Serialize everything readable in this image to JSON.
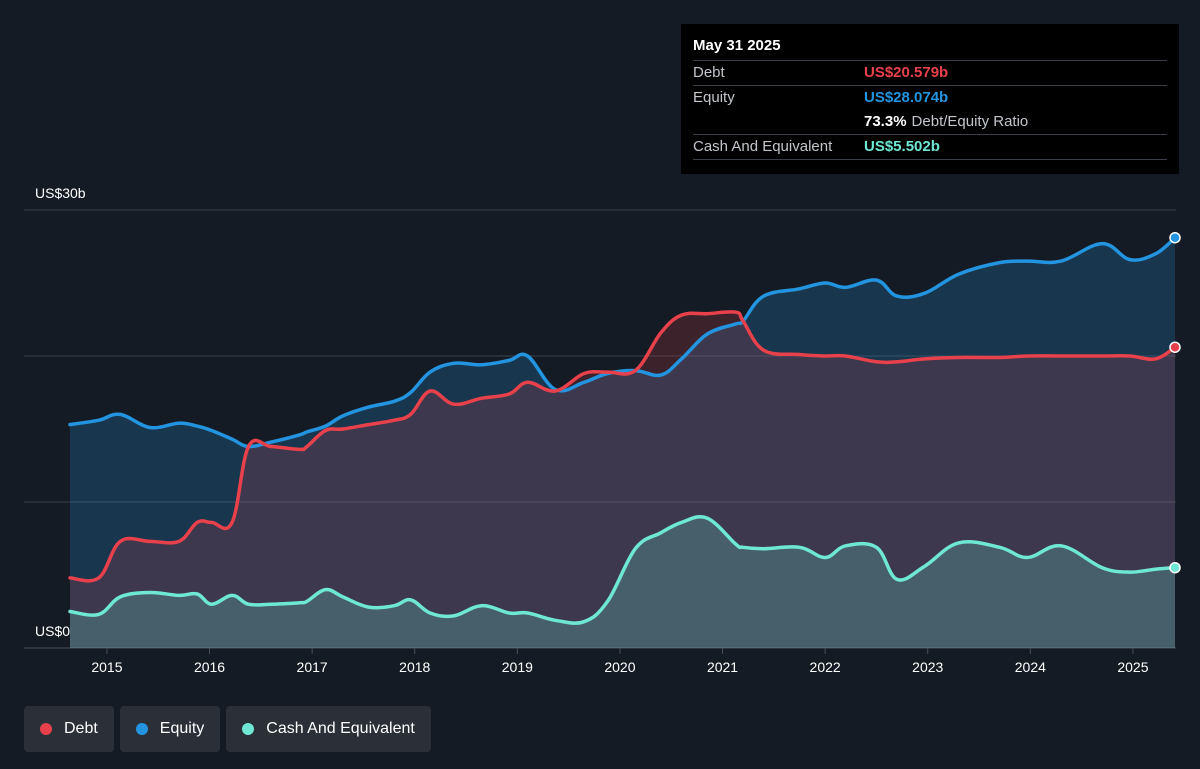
{
  "colors": {
    "debt": "#e8414b",
    "equity": "#2394df",
    "cash": "#6ee8d5",
    "grid": "#3a3f47"
  },
  "tooltip": {
    "date": "May 31 2025",
    "debt_label": "Debt",
    "debt_value": "US$20.579b",
    "equity_label": "Equity",
    "equity_value": "US$28.074b",
    "ratio_value": "73.3%",
    "ratio_label": "Debt/Equity Ratio",
    "cash_label": "Cash And Equivalent",
    "cash_value": "US$5.502b"
  },
  "legend": {
    "debt": "Debt",
    "equity": "Equity",
    "cash": "Cash And Equivalent"
  },
  "chart_data": {
    "type": "area",
    "ylabel_top": "US$30b",
    "ylabel_bottom": "US$0",
    "ylim": [
      0,
      30
    ],
    "grid": true,
    "x_ticks": [
      "2015",
      "2016",
      "2017",
      "2018",
      "2019",
      "2020",
      "2021",
      "2022",
      "2023",
      "2024",
      "2025"
    ],
    "series": [
      {
        "name": "Debt",
        "x": [
          2014.64,
          2014.92,
          2015.13,
          2015.42,
          2015.7,
          2015.88,
          2016.02,
          2016.22,
          2016.38,
          2016.6,
          2016.88,
          2016.95,
          2017.13,
          2017.3,
          2017.55,
          2017.8,
          2017.96,
          2018.15,
          2018.38,
          2018.65,
          2018.92,
          2019.1,
          2019.37,
          2019.65,
          2019.88,
          2020.15,
          2020.4,
          2020.6,
          2020.85,
          2021.13,
          2021.2,
          2021.4,
          2021.75,
          2022.0,
          2022.2,
          2022.5,
          2022.7,
          2022.97,
          2023.3,
          2023.7,
          2023.97,
          2024.3,
          2024.7,
          2024.97,
          2025.22,
          2025.41
        ],
        "values": [
          4.8,
          4.8,
          7.3,
          7.3,
          7.3,
          8.6,
          8.6,
          8.6,
          13.8,
          13.8,
          13.6,
          13.8,
          14.9,
          15.0,
          15.3,
          15.6,
          16.0,
          17.6,
          16.7,
          17.1,
          17.4,
          18.2,
          17.6,
          18.8,
          18.9,
          19.0,
          21.6,
          22.8,
          22.9,
          23.0,
          22.4,
          20.4,
          20.1,
          20.0,
          20.0,
          19.6,
          19.6,
          19.8,
          19.9,
          19.9,
          20.0,
          20.0,
          20.0,
          20.0,
          19.8,
          20.6
        ]
      },
      {
        "name": "Equity",
        "x": [
          2014.64,
          2014.92,
          2015.13,
          2015.42,
          2015.7,
          2015.88,
          2016.02,
          2016.22,
          2016.38,
          2016.6,
          2016.88,
          2016.95,
          2017.13,
          2017.3,
          2017.55,
          2017.8,
          2017.96,
          2018.15,
          2018.38,
          2018.65,
          2018.92,
          2019.1,
          2019.37,
          2019.65,
          2019.88,
          2020.15,
          2020.4,
          2020.6,
          2020.85,
          2021.13,
          2021.2,
          2021.4,
          2021.75,
          2022.0,
          2022.2,
          2022.5,
          2022.7,
          2022.97,
          2023.3,
          2023.7,
          2023.97,
          2024.3,
          2024.7,
          2024.97,
          2025.22,
          2025.41
        ],
        "values": [
          15.3,
          15.6,
          16.0,
          15.1,
          15.4,
          15.2,
          14.9,
          14.3,
          13.8,
          14.1,
          14.6,
          14.8,
          15.2,
          15.9,
          16.5,
          16.9,
          17.5,
          18.9,
          19.5,
          19.4,
          19.7,
          20.0,
          17.7,
          18.2,
          18.8,
          19.0,
          18.7,
          19.8,
          21.5,
          22.2,
          22.4,
          24.1,
          24.6,
          25.0,
          24.7,
          25.2,
          24.1,
          24.3,
          25.6,
          26.4,
          26.5,
          26.5,
          27.7,
          26.6,
          27.0,
          28.1
        ]
      },
      {
        "name": "Cash And Equivalent",
        "x": [
          2014.64,
          2014.92,
          2015.13,
          2015.42,
          2015.7,
          2015.88,
          2016.02,
          2016.22,
          2016.38,
          2016.6,
          2016.88,
          2016.95,
          2017.13,
          2017.3,
          2017.55,
          2017.8,
          2017.96,
          2018.15,
          2018.38,
          2018.65,
          2018.92,
          2019.1,
          2019.37,
          2019.65,
          2019.88,
          2020.15,
          2020.4,
          2020.6,
          2020.85,
          2021.13,
          2021.2,
          2021.4,
          2021.75,
          2022.0,
          2022.2,
          2022.5,
          2022.7,
          2022.97,
          2023.3,
          2023.7,
          2023.97,
          2024.3,
          2024.7,
          2024.97,
          2025.22,
          2025.41
        ],
        "values": [
          2.5,
          2.3,
          3.5,
          3.8,
          3.6,
          3.7,
          3.0,
          3.6,
          3.0,
          3.0,
          3.1,
          3.2,
          4.0,
          3.5,
          2.8,
          2.9,
          3.3,
          2.4,
          2.2,
          2.9,
          2.4,
          2.4,
          1.9,
          1.8,
          3.2,
          6.8,
          7.9,
          8.6,
          8.9,
          7.1,
          6.9,
          6.8,
          6.9,
          6.2,
          7.0,
          6.9,
          4.7,
          5.6,
          7.2,
          6.9,
          6.2,
          7.0,
          5.5,
          5.2,
          5.4,
          5.5
        ]
      }
    ]
  }
}
